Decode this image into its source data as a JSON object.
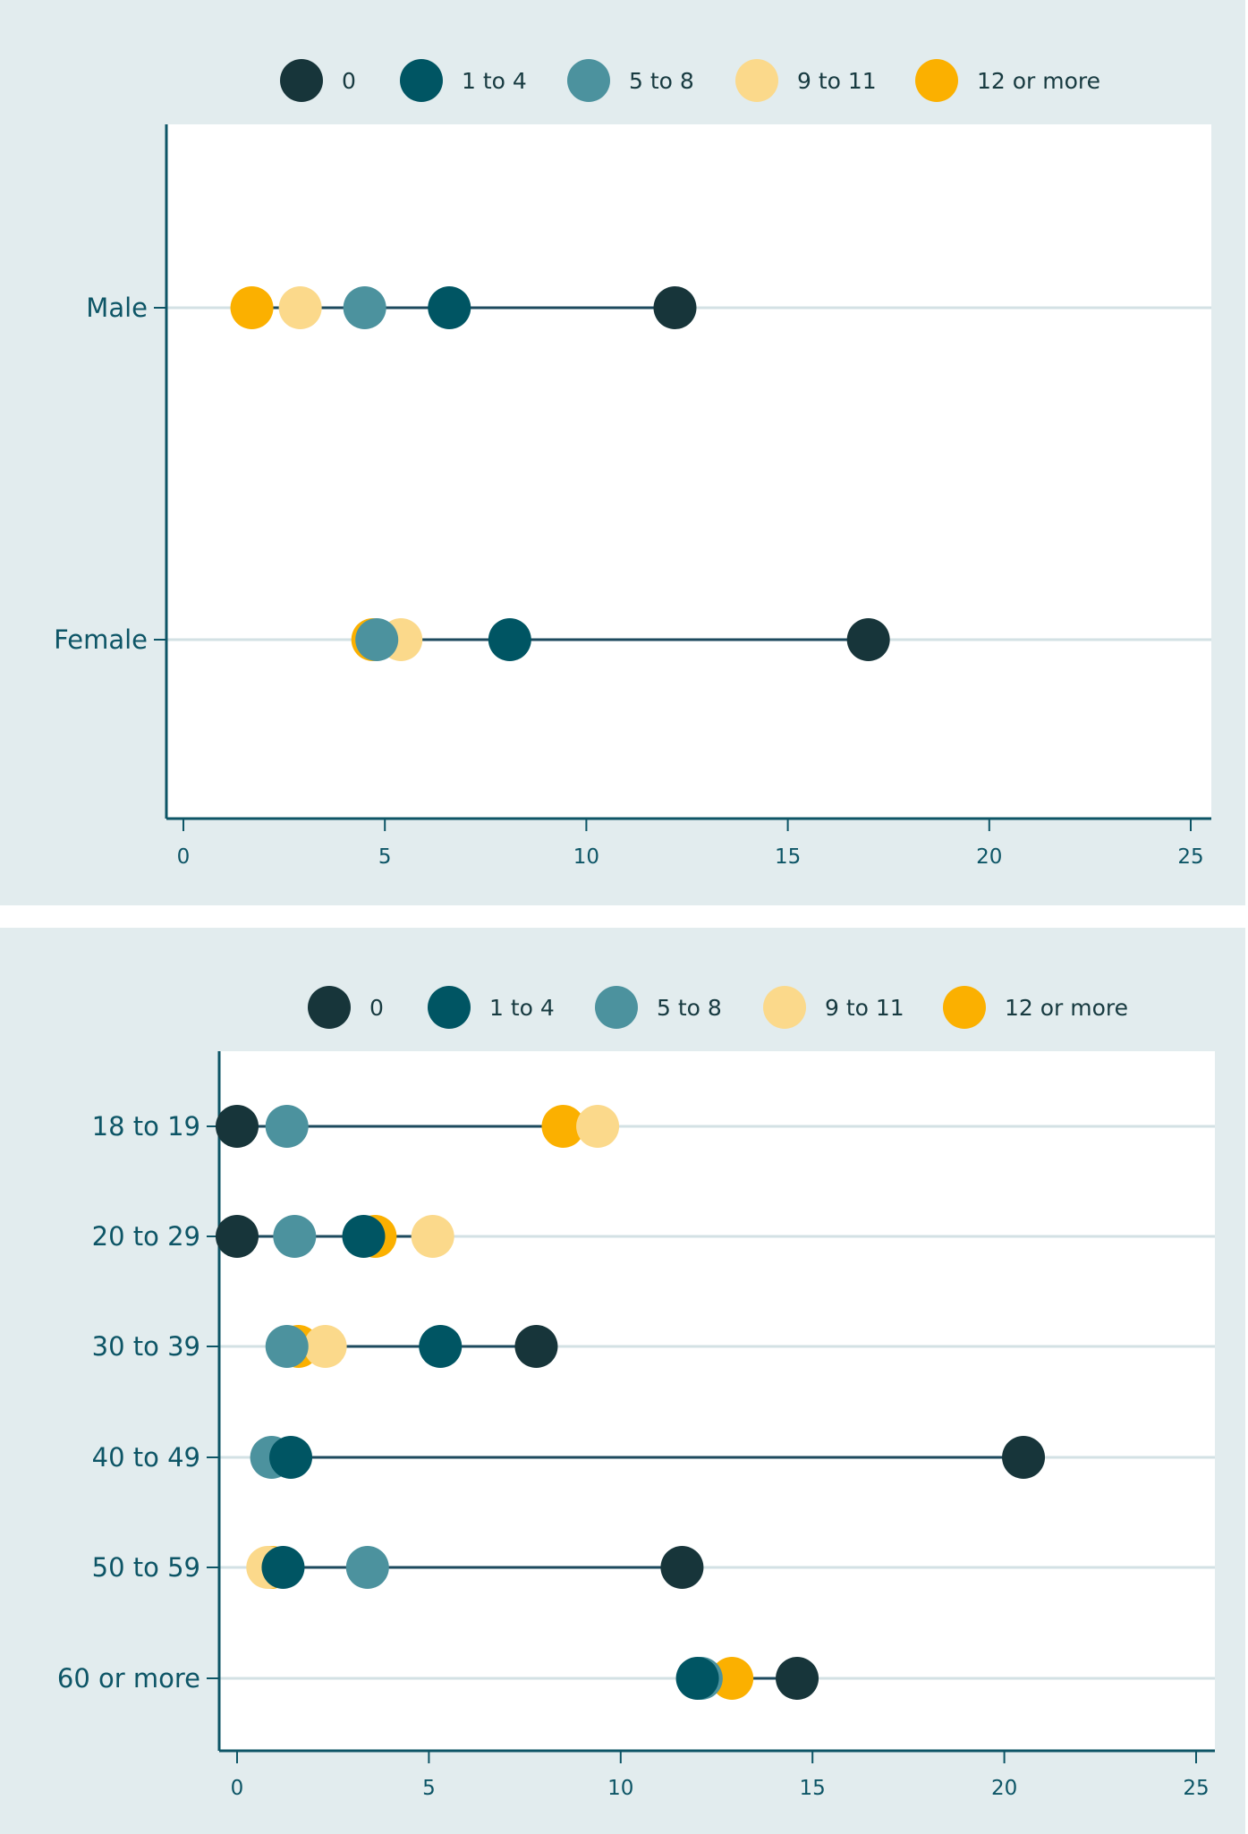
{
  "palette": {
    "0": "#17353a",
    "1 to 4": "#005563",
    "5 to 8": "#4c929e",
    "9 to 11": "#fbd98b",
    "12 or more": "#fbb000"
  },
  "chart_data": [
    {
      "type": "dot",
      "title": "",
      "xlabel": "",
      "ylabel": "",
      "xlim": [
        0,
        25
      ],
      "xticks": [
        0,
        5,
        10,
        15,
        20,
        25
      ],
      "legend": {
        "position": "top",
        "entries": [
          "0",
          "1 to 4",
          "5 to 8",
          "9 to 11",
          "12 or more"
        ]
      },
      "grid": true,
      "categories": [
        "Male",
        "Female"
      ],
      "series": [
        {
          "name": "0",
          "values": [
            12.2,
            17.0
          ]
        },
        {
          "name": "1 to 4",
          "values": [
            6.6,
            8.1
          ]
        },
        {
          "name": "5 to 8",
          "values": [
            4.5,
            4.8
          ]
        },
        {
          "name": "9 to 11",
          "values": [
            2.9,
            5.4
          ]
        },
        {
          "name": "12 or more",
          "values": [
            1.7,
            4.7
          ]
        }
      ]
    },
    {
      "type": "dot",
      "title": "",
      "xlabel": "",
      "ylabel": "",
      "xlim": [
        0,
        25
      ],
      "xticks": [
        0,
        5,
        10,
        15,
        20,
        25
      ],
      "legend": {
        "position": "top",
        "entries": [
          "0",
          "1 to 4",
          "5 to 8",
          "9 to 11",
          "12 or more"
        ]
      },
      "grid": true,
      "categories": [
        "18 to 19",
        "20 to 29",
        "30 to 39",
        "40 to 49",
        "50 to 59",
        "60 or more"
      ],
      "series": [
        {
          "name": "0",
          "values": [
            0.0,
            0.0,
            7.8,
            20.5,
            11.6,
            14.6
          ]
        },
        {
          "name": "1 to 4",
          "values": [
            null,
            3.3,
            5.3,
            1.4,
            1.2,
            12.0
          ]
        },
        {
          "name": "5 to 8",
          "values": [
            1.3,
            1.5,
            1.3,
            0.9,
            3.4,
            12.1
          ]
        },
        {
          "name": "9 to 11",
          "values": [
            9.4,
            5.1,
            2.3,
            null,
            0.8,
            null
          ]
        },
        {
          "name": "12 or more",
          "values": [
            8.5,
            3.6,
            1.6,
            null,
            0.9,
            12.9
          ]
        }
      ]
    }
  ]
}
